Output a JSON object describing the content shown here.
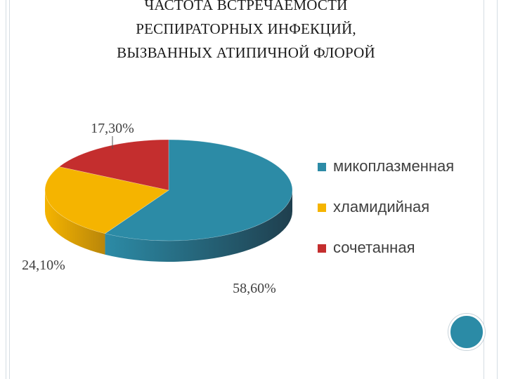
{
  "title_lines": [
    "ЧАСТОТА ВСТРЕЧАЕМОСТИ",
    "РЕСПИРАТОРНЫХ ИНФЕКЦИЙ,",
    "ВЫЗВАННЫХ АТИПИЧНОЙ ФЛОРОЙ"
  ],
  "chart_data": {
    "type": "pie",
    "three_d": true,
    "legend_position": "right",
    "categories": [
      "микоплазменная",
      "хламидийная",
      "сочетанная"
    ],
    "values": [
      58.6,
      24.1,
      17.3
    ],
    "data_labels": [
      "58,60%",
      "24,10%",
      "17,30%"
    ],
    "colors": [
      "#2c8ba6",
      "#f5b400",
      "#c42e2e"
    ],
    "side_colors": [
      "#1f3f4e",
      "#b9860a",
      "#8e1f1f"
    ]
  },
  "accent_color": "#2b8ba6"
}
